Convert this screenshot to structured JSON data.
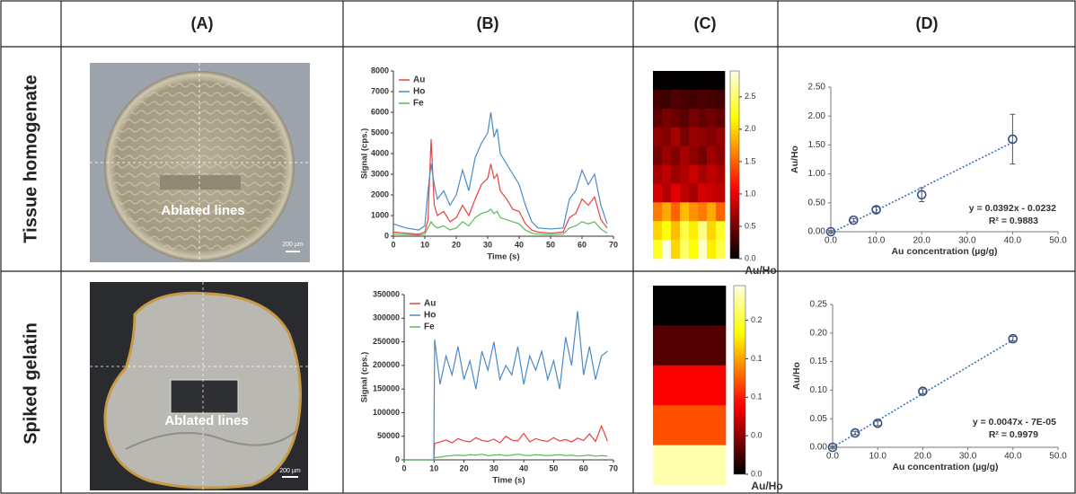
{
  "header": {
    "columns": [
      "(A)",
      "(B)",
      "(C)",
      "(D)"
    ]
  },
  "rows": [
    {
      "label": "Tissue homogenate",
      "photo": {
        "annotation": "Ablated lines",
        "scale_bar": "200 µm"
      },
      "signal": {
        "type": "line",
        "x_label": "Time (s)",
        "y_label": "Signal (cps.)",
        "x": [
          0,
          4,
          8,
          10,
          11,
          12,
          13,
          14,
          16,
          18,
          20,
          22,
          24,
          26,
          28,
          30,
          31,
          32,
          33,
          34,
          36,
          38,
          40,
          42,
          44,
          46,
          50,
          54,
          56,
          58,
          60,
          62,
          64,
          66,
          68
        ],
        "series": [
          {
            "name": "Au",
            "color": "#e8423f",
            "values": [
              200,
              150,
              100,
              200,
              800,
              4700,
              1500,
              1000,
              1200,
              700,
              900,
              1500,
              1000,
              1800,
              2500,
              2800,
              3500,
              2800,
              3000,
              2200,
              1800,
              1300,
              1200,
              600,
              300,
              200,
              150,
              200,
              900,
              1100,
              1800,
              1500,
              1900,
              800,
              400
            ]
          },
          {
            "name": "Ho",
            "color": "#4a8ac8",
            "values": [
              600,
              400,
              300,
              500,
              2200,
              3500,
              2500,
              1800,
              2200,
              1500,
              2000,
              3200,
              2200,
              3800,
              4500,
              5000,
              6000,
              4800,
              5200,
              4000,
              3500,
              3000,
              2500,
              1500,
              700,
              400,
              350,
              400,
              1800,
              2200,
              3200,
              2500,
              3000,
              1500,
              600
            ]
          },
          {
            "name": "Fe",
            "color": "#5cb85c",
            "values": [
              100,
              80,
              60,
              100,
              400,
              700,
              500,
              400,
              500,
              300,
              400,
              700,
              500,
              900,
              1100,
              1200,
              1300,
              1100,
              1200,
              900,
              800,
              700,
              600,
              300,
              150,
              100,
              80,
              100,
              400,
              500,
              700,
              600,
              700,
              350,
              150
            ]
          }
        ],
        "xlim": [
          0,
          70
        ],
        "xticks": [
          0,
          10,
          20,
          30,
          40,
          50,
          60,
          70
        ],
        "ylim": [
          0,
          8000
        ],
        "yticks": [
          0,
          1000,
          2000,
          3000,
          4000,
          5000,
          6000,
          7000,
          8000
        ]
      },
      "heatmap": {
        "type": "heatmap",
        "colorbar_label": "Au/Ho",
        "values": [
          [
            0,
            0.02,
            0,
            0.01,
            0,
            0.02,
            0.01,
            0
          ],
          [
            0.3,
            0.25,
            0.35,
            0.3,
            0.28,
            0.32,
            0.3,
            0.27
          ],
          [
            0.4,
            0.5,
            0.45,
            0.38,
            0.5,
            0.42,
            0.48,
            0.4
          ],
          [
            0.6,
            0.55,
            0.7,
            0.5,
            0.65,
            0.6,
            0.55,
            0.62
          ],
          [
            0.5,
            0.65,
            0.55,
            0.7,
            0.6,
            0.5,
            0.68,
            0.58
          ],
          [
            0.7,
            0.8,
            0.65,
            0.75,
            0.85,
            0.7,
            0.8,
            0.72
          ],
          [
            0.9,
            0.75,
            0.95,
            0.8,
            0.7,
            0.9,
            0.85,
            0.8
          ],
          [
            1.6,
            1.8,
            1.5,
            1.9,
            1.7,
            1.6,
            1.8,
            1.5
          ],
          [
            2.0,
            2.2,
            1.9,
            2.4,
            2.1,
            2.6,
            2.0,
            2.3
          ],
          [
            2.3,
            2.9,
            2.0,
            2.5,
            2.2,
            2.8,
            2.1,
            2.4
          ]
        ],
        "clim": [
          0,
          2.9
        ],
        "cticks": [
          {
            "value": 0,
            "label": "0.0"
          },
          {
            "value": 0.5,
            "label": "0.5"
          },
          {
            "value": 1,
            "label": "1.0"
          },
          {
            "value": 1.5,
            "label": "1.5"
          },
          {
            "value": 2,
            "label": "2.0"
          },
          {
            "value": 2.5,
            "label": "2.5"
          }
        ]
      },
      "calibration": {
        "type": "scatter",
        "x_label": "Au concentration (µg/g)",
        "y_label": "Au/Ho",
        "color": "#2f4f8f",
        "x": [
          0,
          5,
          10,
          20,
          40
        ],
        "values": [
          0,
          0.2,
          0.38,
          0.64,
          1.6
        ],
        "errors": [
          0.02,
          0.03,
          0.05,
          0.12,
          0.43
        ],
        "fit": {
          "slope": 0.0392,
          "intercept": -0.0232
        },
        "equation": "y = 0.0392x - 0.0232",
        "r_squared": "R² = 0.9883",
        "xlim": [
          0,
          50
        ],
        "xticks": [
          {
            "value": 0,
            "label": "0.0"
          },
          {
            "value": 10,
            "label": "10.0"
          },
          {
            "value": 20,
            "label": "20.0"
          },
          {
            "value": 30,
            "label": "30.0"
          },
          {
            "value": 40,
            "label": "40.0"
          },
          {
            "value": 50,
            "label": "50.0"
          }
        ],
        "ylim": [
          0,
          2.5
        ],
        "yticks": [
          {
            "value": 0,
            "label": "0.00"
          },
          {
            "value": 0.5,
            "label": "0.50"
          },
          {
            "value": 1,
            "label": "1.00"
          },
          {
            "value": 1.5,
            "label": "1.50"
          },
          {
            "value": 2,
            "label": "2.00"
          },
          {
            "value": 2.5,
            "label": "2.50"
          }
        ]
      }
    },
    {
      "label": "Spiked gelatin",
      "photo": {
        "annotation": "Ablated lines",
        "scale_bar": "200 µm"
      },
      "signal": {
        "type": "line",
        "x_label": "Time (s)",
        "y_label": "Signal (cps.)",
        "x": [
          0,
          5,
          9.9,
          10.2,
          12,
          14,
          16,
          18,
          20,
          22,
          24,
          26,
          28,
          30,
          32,
          34,
          36,
          38,
          40,
          42,
          44,
          46,
          48,
          50,
          52,
          54,
          56,
          58,
          60,
          62,
          64,
          66,
          68
        ],
        "series": [
          {
            "name": "Au",
            "color": "#e8423f",
            "values": [
              0,
              0,
              0,
              35000,
              38000,
              42000,
              36000,
              45000,
              40000,
              38000,
              47000,
              41000,
              39000,
              44000,
              36000,
              50000,
              42000,
              40000,
              56000,
              38000,
              45000,
              41000,
              39000,
              47000,
              40000,
              43000,
              38000,
              46000,
              41000,
              55000,
              39000,
              72000,
              40000
            ]
          },
          {
            "name": "Ho",
            "color": "#4a8ac8",
            "values": [
              0,
              0,
              0,
              255000,
              160000,
              220000,
              180000,
              240000,
              170000,
              210000,
              150000,
              230000,
              190000,
              250000,
              170000,
              200000,
              180000,
              240000,
              160000,
              220000,
              190000,
              230000,
              170000,
              210000,
              150000,
              260000,
              200000,
              315000,
              180000,
              240000,
              170000,
              220000,
              230000
            ]
          },
          {
            "name": "Fe",
            "color": "#5cb85c",
            "values": [
              0,
              0,
              0,
              5000,
              6000,
              8000,
              9000,
              10000,
              9000,
              11000,
              10000,
              12000,
              9000,
              10000,
              11000,
              9000,
              10000,
              12000,
              10000,
              9000,
              11000,
              10000,
              9000,
              10000,
              11000,
              9000,
              10000,
              8000,
              9000,
              10000,
              8000,
              9000,
              8000
            ]
          }
        ],
        "xlim": [
          0,
          70
        ],
        "xticks": [
          0,
          10,
          20,
          30,
          40,
          50,
          60,
          70
        ],
        "ylim": [
          0,
          350000
        ],
        "yticks": [
          0,
          50000,
          100000,
          150000,
          200000,
          250000,
          300000,
          350000
        ]
      },
      "heatmap": {
        "type": "heatmap",
        "colorbar_label": "Au/Ho",
        "values": [
          [
            0
          ],
          [
            0.03
          ],
          [
            0.09
          ],
          [
            0.12
          ],
          [
            0.23
          ]
        ],
        "clim": [
          0,
          0.245
        ],
        "cticks": [
          {
            "value": 0,
            "label": "0.0"
          },
          {
            "value": 0.05,
            "label": "0.0"
          },
          {
            "value": 0.1,
            "label": "0.1"
          },
          {
            "value": 0.15,
            "label": "0.1"
          },
          {
            "value": 0.2,
            "label": "0.2"
          }
        ]
      },
      "calibration": {
        "type": "scatter",
        "x_label": "Au concentration (µg/g)",
        "y_label": "Au/Ho",
        "color": "#2f4f8f",
        "x": [
          0,
          5,
          10,
          20,
          40
        ],
        "values": [
          0,
          0.025,
          0.042,
          0.098,
          0.19
        ],
        "errors": [
          0.002,
          0.003,
          0.004,
          0.004,
          0.004
        ],
        "fit": {
          "slope": 0.0047,
          "intercept": -7e-05
        },
        "equation": "y = 0.0047x - 7E-05",
        "r_squared": "R² = 0.9979",
        "xlim": [
          0,
          50
        ],
        "xticks": [
          {
            "value": 0,
            "label": "0.0"
          },
          {
            "value": 10,
            "label": "10.0"
          },
          {
            "value": 20,
            "label": "20.0"
          },
          {
            "value": 30,
            "label": "30.0"
          },
          {
            "value": 40,
            "label": "40.0"
          },
          {
            "value": 50,
            "label": "50.0"
          }
        ],
        "ylim": [
          0,
          0.25
        ],
        "yticks": [
          {
            "value": 0,
            "label": "0.00"
          },
          {
            "value": 0.05,
            "label": "0.05"
          },
          {
            "value": 0.1,
            "label": "0.10"
          },
          {
            "value": 0.15,
            "label": "0.15"
          },
          {
            "value": 0.2,
            "label": "0.20"
          },
          {
            "value": 0.25,
            "label": "0.25"
          }
        ]
      }
    }
  ]
}
